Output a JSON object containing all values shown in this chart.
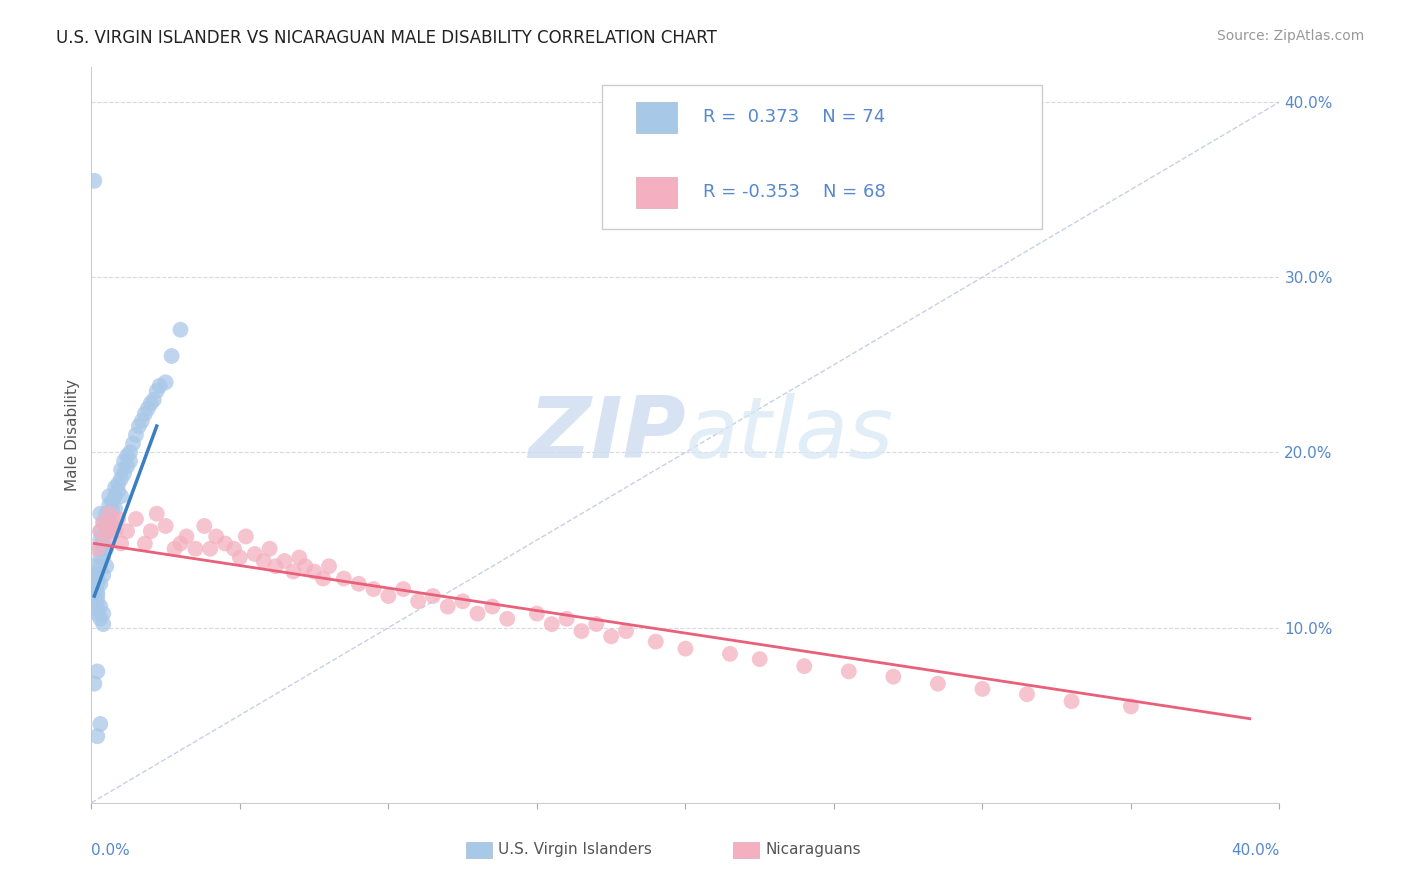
{
  "title": "U.S. VIRGIN ISLANDER VS NICARAGUAN MALE DISABILITY CORRELATION CHART",
  "source": "Source: ZipAtlas.com",
  "ylabel": "Male Disability",
  "xlim": [
    0.0,
    0.4
  ],
  "ylim": [
    0.0,
    0.42
  ],
  "r_blue": 0.373,
  "n_blue": 74,
  "r_pink": -0.353,
  "n_pink": 68,
  "blue_color": "#a8c8e8",
  "pink_color": "#f4b0c0",
  "blue_line_color": "#3a7fc1",
  "pink_line_color": "#e8607a",
  "background_color": "#ffffff",
  "grid_color": "#d8d8e8",
  "title_fontsize": 12,
  "tick_color": "#5588cc",
  "blue_scatter_x": [
    0.001,
    0.001,
    0.001,
    0.001,
    0.002,
    0.002,
    0.002,
    0.002,
    0.002,
    0.002,
    0.003,
    0.003,
    0.003,
    0.003,
    0.003,
    0.003,
    0.003,
    0.004,
    0.004,
    0.004,
    0.004,
    0.004,
    0.005,
    0.005,
    0.005,
    0.005,
    0.005,
    0.006,
    0.006,
    0.006,
    0.006,
    0.007,
    0.007,
    0.007,
    0.007,
    0.008,
    0.008,
    0.008,
    0.009,
    0.009,
    0.01,
    0.01,
    0.01,
    0.011,
    0.011,
    0.012,
    0.012,
    0.013,
    0.013,
    0.014,
    0.015,
    0.016,
    0.017,
    0.018,
    0.019,
    0.02,
    0.021,
    0.022,
    0.023,
    0.025,
    0.027,
    0.03,
    0.001,
    0.001,
    0.002,
    0.002,
    0.003,
    0.003,
    0.004,
    0.004,
    0.002,
    0.001,
    0.003,
    0.002
  ],
  "blue_scatter_y": [
    0.125,
    0.13,
    0.12,
    0.135,
    0.125,
    0.115,
    0.13,
    0.12,
    0.118,
    0.128,
    0.14,
    0.145,
    0.135,
    0.15,
    0.125,
    0.155,
    0.165,
    0.14,
    0.15,
    0.16,
    0.145,
    0.13,
    0.16,
    0.155,
    0.165,
    0.145,
    0.135,
    0.17,
    0.155,
    0.165,
    0.175,
    0.168,
    0.172,
    0.158,
    0.162,
    0.175,
    0.168,
    0.18,
    0.182,
    0.178,
    0.185,
    0.175,
    0.19,
    0.188,
    0.195,
    0.192,
    0.198,
    0.195,
    0.2,
    0.205,
    0.21,
    0.215,
    0.218,
    0.222,
    0.225,
    0.228,
    0.23,
    0.235,
    0.238,
    0.24,
    0.255,
    0.27,
    0.355,
    0.115,
    0.11,
    0.108,
    0.112,
    0.105,
    0.108,
    0.102,
    0.075,
    0.068,
    0.045,
    0.038
  ],
  "pink_scatter_x": [
    0.002,
    0.003,
    0.004,
    0.005,
    0.006,
    0.007,
    0.008,
    0.009,
    0.01,
    0.012,
    0.015,
    0.018,
    0.02,
    0.022,
    0.025,
    0.028,
    0.03,
    0.032,
    0.035,
    0.038,
    0.04,
    0.042,
    0.045,
    0.048,
    0.05,
    0.052,
    0.055,
    0.058,
    0.06,
    0.062,
    0.065,
    0.068,
    0.07,
    0.072,
    0.075,
    0.078,
    0.08,
    0.085,
    0.09,
    0.095,
    0.1,
    0.105,
    0.11,
    0.115,
    0.12,
    0.125,
    0.13,
    0.135,
    0.14,
    0.15,
    0.155,
    0.16,
    0.165,
    0.17,
    0.175,
    0.18,
    0.19,
    0.2,
    0.215,
    0.225,
    0.24,
    0.255,
    0.27,
    0.285,
    0.3,
    0.315,
    0.33,
    0.35
  ],
  "pink_scatter_y": [
    0.145,
    0.155,
    0.16,
    0.15,
    0.165,
    0.158,
    0.155,
    0.162,
    0.148,
    0.155,
    0.162,
    0.148,
    0.155,
    0.165,
    0.158,
    0.145,
    0.148,
    0.152,
    0.145,
    0.158,
    0.145,
    0.152,
    0.148,
    0.145,
    0.14,
    0.152,
    0.142,
    0.138,
    0.145,
    0.135,
    0.138,
    0.132,
    0.14,
    0.135,
    0.132,
    0.128,
    0.135,
    0.128,
    0.125,
    0.122,
    0.118,
    0.122,
    0.115,
    0.118,
    0.112,
    0.115,
    0.108,
    0.112,
    0.105,
    0.108,
    0.102,
    0.105,
    0.098,
    0.102,
    0.095,
    0.098,
    0.092,
    0.088,
    0.085,
    0.082,
    0.078,
    0.075,
    0.072,
    0.068,
    0.065,
    0.062,
    0.058,
    0.055
  ],
  "blue_trendline_x": [
    0.001,
    0.022
  ],
  "blue_trendline_y": [
    0.118,
    0.215
  ],
  "pink_trendline_x": [
    0.001,
    0.39
  ],
  "pink_trendline_y": [
    0.148,
    0.048
  ],
  "diag_line_x": [
    0.0,
    0.4
  ],
  "diag_line_y": [
    0.0,
    0.4
  ]
}
